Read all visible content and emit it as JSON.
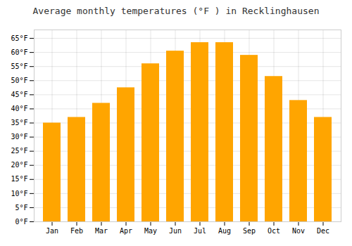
{
  "chart_data": {
    "type": "bar",
    "title": "Average monthly temperatures (°F ) in Recklinghausen",
    "categories": [
      "Jan",
      "Feb",
      "Mar",
      "Apr",
      "May",
      "Jun",
      "Jul",
      "Aug",
      "Sep",
      "Oct",
      "Nov",
      "Dec"
    ],
    "values": [
      35.0,
      37.0,
      42.0,
      47.5,
      56.0,
      60.5,
      63.5,
      63.5,
      59.0,
      51.5,
      43.0,
      37.0
    ],
    "color": "#FFA500",
    "ylim": [
      0,
      68
    ],
    "yticks": [
      {
        "value": 0,
        "label": "0°F"
      },
      {
        "value": 5,
        "label": "5°F"
      },
      {
        "value": 10,
        "label": "10°F"
      },
      {
        "value": 15,
        "label": "15°F"
      },
      {
        "value": 20,
        "label": "20°F"
      },
      {
        "value": 25,
        "label": "25°F"
      },
      {
        "value": 30,
        "label": "30°F"
      },
      {
        "value": 35,
        "label": "35°F"
      },
      {
        "value": 40,
        "label": "40°F"
      },
      {
        "value": 45,
        "label": "45°F"
      },
      {
        "value": 50,
        "label": "50°F"
      },
      {
        "value": 55,
        "label": "55°F"
      },
      {
        "value": 60,
        "label": "60°F"
      },
      {
        "value": 65,
        "label": "65°F"
      }
    ],
    "grid": true
  }
}
